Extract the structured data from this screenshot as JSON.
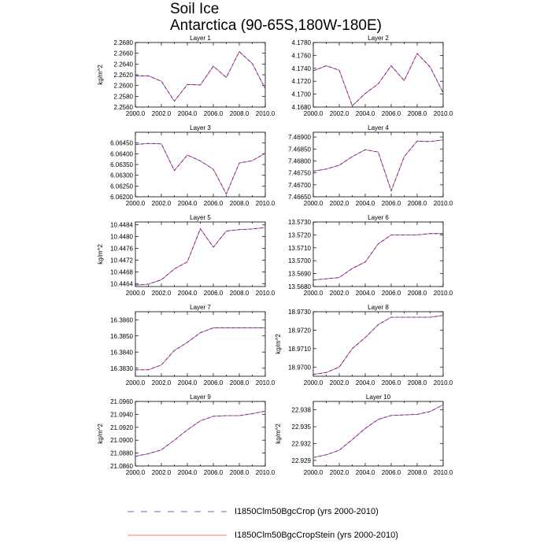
{
  "figure": {
    "title_line1": "Soil Ice",
    "title_line2": "Antarctica (90-65S,180W-180E)"
  },
  "legend": {
    "entries": [
      {
        "label": "I1850Clm50BgcCrop (yrs 2000-2010)",
        "color": "#3333cc",
        "dash": true
      },
      {
        "label": "I1850Clm50BgcCropStein (yrs 2000-2010)",
        "color": "#ff4d4d",
        "dash": false
      }
    ]
  },
  "chart_data": [
    {
      "type": "line",
      "title": "Layer 1",
      "ylabel": "kg/m^2",
      "x": [
        2000,
        2001,
        2002,
        2003,
        2004,
        2005,
        2006,
        2007,
        2008,
        2009,
        2010
      ],
      "ylim": [
        2.256,
        2.268
      ],
      "yticks": [
        "2.2560",
        "2.2580",
        "2.2600",
        "2.2620",
        "2.2640",
        "2.2660",
        "2.2680"
      ],
      "yticks_val": [
        2.256,
        2.258,
        2.26,
        2.262,
        2.264,
        2.266,
        2.268
      ],
      "series": [
        {
          "values": [
            2.2618,
            2.2618,
            2.2608,
            2.2571,
            2.2602,
            2.2601,
            2.2636,
            2.2615,
            2.2663,
            2.2641,
            2.2594
          ]
        }
      ]
    },
    {
      "type": "line",
      "title": "Layer 2",
      "ylabel": "",
      "x": [
        2000,
        2001,
        2002,
        2003,
        2004,
        2005,
        2006,
        2007,
        2008,
        2009,
        2010
      ],
      "ylim": [
        4.168,
        4.178
      ],
      "yticks": [
        "4.1680",
        "4.1700",
        "4.1720",
        "4.1740",
        "4.1760",
        "4.1780"
      ],
      "yticks_val": [
        4.168,
        4.17,
        4.172,
        4.174,
        4.176,
        4.178
      ],
      "series": [
        {
          "values": [
            4.1736,
            4.1744,
            4.1737,
            4.1682,
            4.1701,
            4.1716,
            4.1744,
            4.1721,
            4.1763,
            4.1742,
            4.1702
          ]
        }
      ]
    },
    {
      "type": "line",
      "title": "Layer 3",
      "ylabel": "",
      "x": [
        2000,
        2001,
        2002,
        2003,
        2004,
        2005,
        2006,
        2007,
        2008,
        2009,
        2010
      ],
      "ylim": [
        6.062,
        6.065
      ],
      "yticks": [
        "6.06200",
        "6.06250",
        "6.06300",
        "6.06350",
        "6.06400",
        "6.06450"
      ],
      "yticks_val": [
        6.062,
        6.0625,
        6.063,
        6.0635,
        6.064,
        6.0645
      ],
      "series": [
        {
          "values": [
            6.06443,
            6.06448,
            6.06446,
            6.06322,
            6.06394,
            6.06367,
            6.06328,
            6.06213,
            6.06357,
            6.06368,
            6.06402
          ]
        }
      ]
    },
    {
      "type": "line",
      "title": "Layer 4",
      "ylabel": "",
      "x": [
        2000,
        2001,
        2002,
        2003,
        2004,
        2005,
        2006,
        2007,
        2008,
        2009,
        2010
      ],
      "ylim": [
        7.4665,
        7.4692
      ],
      "yticks": [
        "7.46650",
        "7.46700",
        "7.46750",
        "7.46800",
        "7.46850",
        "7.46900"
      ],
      "yticks_val": [
        7.4665,
        7.467,
        7.4675,
        7.468,
        7.4685,
        7.469
      ],
      "series": [
        {
          "values": [
            7.46757,
            7.46766,
            7.46782,
            7.46818,
            7.46847,
            7.46837,
            7.46675,
            7.46818,
            7.46883,
            7.46881,
            7.46888
          ]
        }
      ]
    },
    {
      "type": "line",
      "title": "Layer 5",
      "ylabel": "kg/m^2",
      "x": [
        2000,
        2001,
        2002,
        2003,
        2004,
        2005,
        2006,
        2007,
        2008,
        2009,
        2010
      ],
      "ylim": [
        10.4463,
        10.4485
      ],
      "yticks": [
        "10.4464",
        "10.4468",
        "10.4472",
        "10.4476",
        "10.4480",
        "10.4484"
      ],
      "yticks_val": [
        10.4464,
        10.4468,
        10.4472,
        10.4476,
        10.448,
        10.4484
      ],
      "series": [
        {
          "values": [
            10.44635,
            10.44638,
            10.44653,
            10.4469,
            10.44714,
            10.44827,
            10.44764,
            10.44819,
            10.44824,
            10.44826,
            10.44831
          ]
        }
      ]
    },
    {
      "type": "line",
      "title": "Layer 6",
      "ylabel": "",
      "x": [
        2000,
        2001,
        2002,
        2003,
        2004,
        2005,
        2006,
        2007,
        2008,
        2009,
        2010
      ],
      "ylim": [
        13.568,
        13.573
      ],
      "yticks": [
        "13.5680",
        "13.5690",
        "13.5700",
        "13.5710",
        "13.5720",
        "13.5730"
      ],
      "yticks_val": [
        13.568,
        13.569,
        13.57,
        13.571,
        13.572,
        13.573
      ],
      "series": [
        {
          "values": [
            13.5685,
            13.5686,
            13.5687,
            13.5694,
            13.5699,
            13.5713,
            13.572,
            13.572,
            13.572,
            13.5721,
            13.5721
          ]
        }
      ]
    },
    {
      "type": "line",
      "title": "Layer 7",
      "ylabel": "",
      "x": [
        2000,
        2001,
        2002,
        2003,
        2004,
        2005,
        2006,
        2007,
        2008,
        2009,
        2010
      ],
      "ylim": [
        16.3825,
        16.3865
      ],
      "yticks": [
        "16.3830",
        "16.3840",
        "16.3850",
        "16.3860"
      ],
      "yticks_val": [
        16.383,
        16.384,
        16.385,
        16.386
      ],
      "series": [
        {
          "values": [
            16.3829,
            16.3829,
            16.3832,
            16.3841,
            16.3846,
            16.3852,
            16.3855,
            16.3855,
            16.3855,
            16.3855,
            16.3855
          ]
        }
      ]
    },
    {
      "type": "line",
      "title": "Layer 8",
      "ylabel": "kg/m^2",
      "x": [
        2000,
        2001,
        2002,
        2003,
        2004,
        2005,
        2006,
        2007,
        2008,
        2009,
        2010
      ],
      "ylim": [
        18.9695,
        18.973
      ],
      "yticks": [
        "18.9700",
        "18.9710",
        "18.9720",
        "18.9730"
      ],
      "yticks_val": [
        18.97,
        18.971,
        18.972,
        18.973
      ],
      "series": [
        {
          "values": [
            18.9696,
            18.9697,
            18.97,
            18.971,
            18.9716,
            18.9723,
            18.9727,
            18.9727,
            18.9727,
            18.9727,
            18.9728
          ]
        }
      ]
    },
    {
      "type": "line",
      "title": "Layer 9",
      "ylabel": "kg/m^2",
      "x": [
        2000,
        2001,
        2002,
        2003,
        2004,
        2005,
        2006,
        2007,
        2008,
        2009,
        2010
      ],
      "ylim": [
        21.086,
        21.096
      ],
      "yticks": [
        "21.0860",
        "21.0880",
        "21.0900",
        "21.0920",
        "21.0940",
        "21.0960"
      ],
      "yticks_val": [
        21.086,
        21.088,
        21.09,
        21.092,
        21.094,
        21.096
      ],
      "series": [
        {
          "values": [
            21.0875,
            21.0879,
            21.0885,
            21.09,
            21.0916,
            21.093,
            21.0937,
            21.0938,
            21.0938,
            21.0941,
            21.0945
          ]
        }
      ]
    },
    {
      "type": "line",
      "title": "Layer 10",
      "ylabel": "kg/m^2",
      "x": [
        2000,
        2001,
        2002,
        2003,
        2004,
        2005,
        2006,
        2007,
        2008,
        2009,
        2010
      ],
      "ylim": [
        22.928,
        22.9395
      ],
      "yticks": [
        "22.929",
        "22.932",
        "22.935",
        "22.938"
      ],
      "yticks_val": [
        22.929,
        22.932,
        22.935,
        22.938
      ],
      "series": [
        {
          "values": [
            22.9295,
            22.93,
            22.9308,
            22.9327,
            22.9347,
            22.9363,
            22.937,
            22.9371,
            22.9372,
            22.9377,
            22.9389
          ]
        }
      ]
    }
  ],
  "xaxis": {
    "ticks": [
      "2000.0",
      "2002.0",
      "2004.0",
      "2006.0",
      "2008.0",
      "2010.0"
    ],
    "ticks_val": [
      2000,
      2002,
      2004,
      2006,
      2008,
      2010
    ],
    "xlim": [
      2000,
      2010
    ]
  }
}
